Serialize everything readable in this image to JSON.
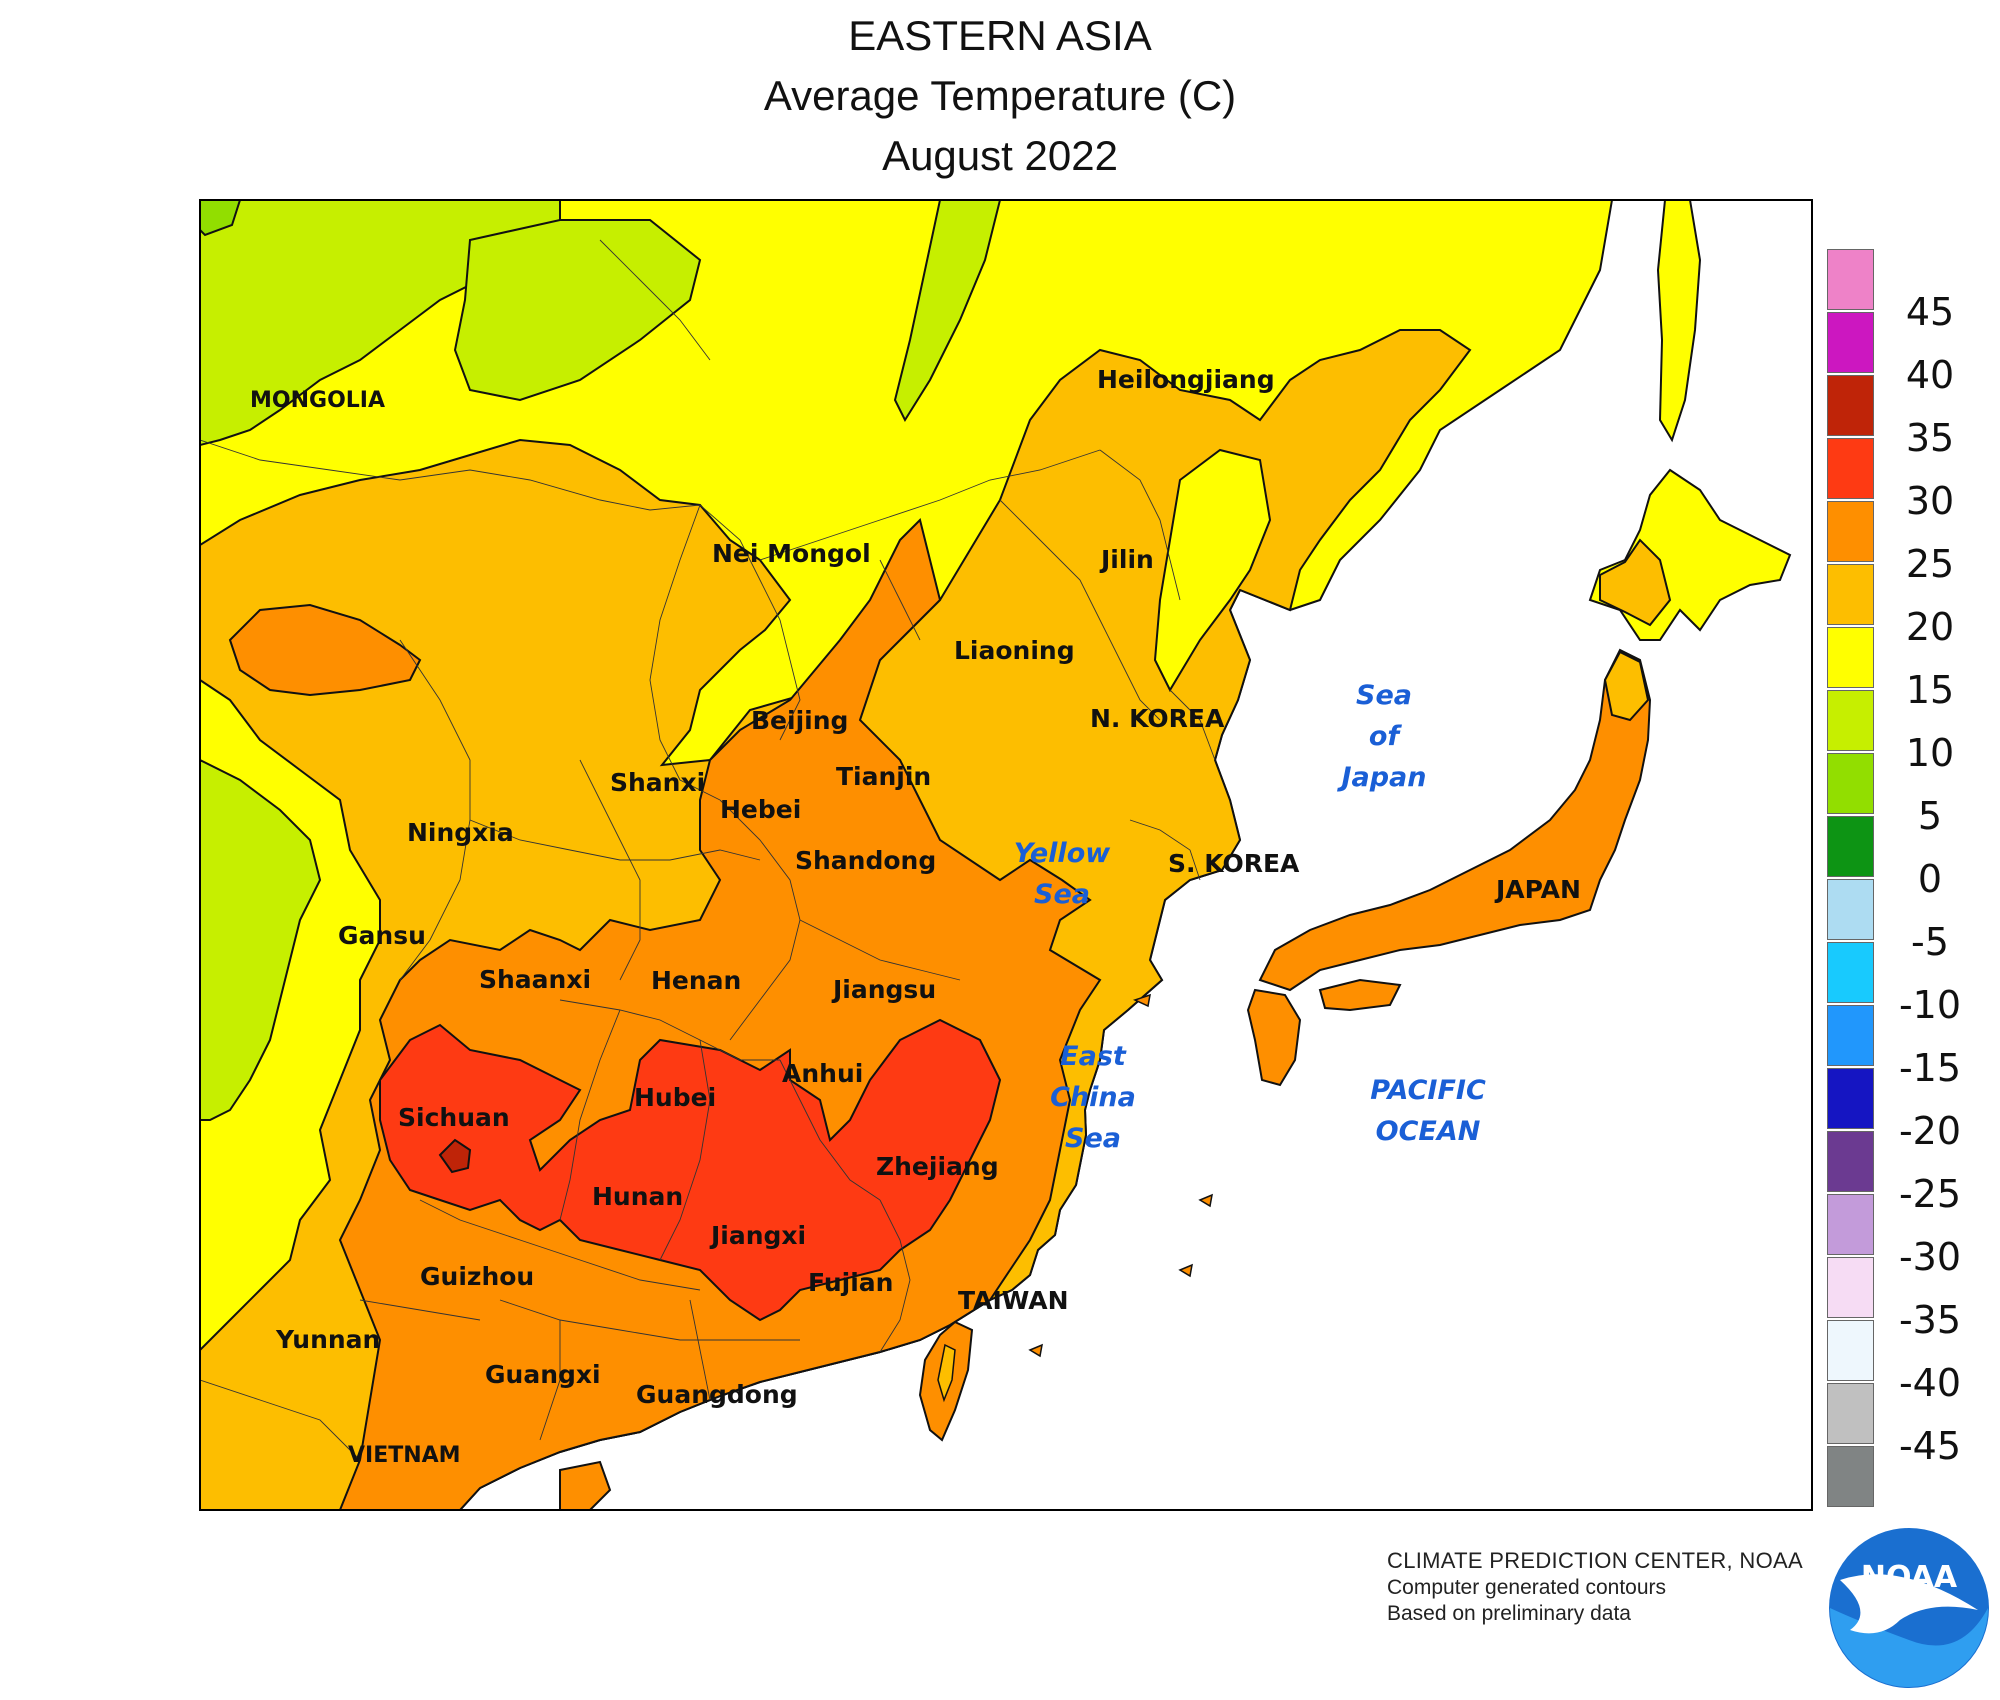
{
  "header": {
    "title": "EASTERN ASIA",
    "subtitle": "Average Temperature (C)",
    "period": "August 2022"
  },
  "map": {
    "region_labels": [
      "MONGOLIA",
      "Heilongjiang",
      "Nei Mongol",
      "Jilin",
      "Liaoning",
      "Beijing",
      "Tianjin",
      "N. KOREA",
      "Shanxi",
      "Hebei",
      "Ningxia",
      "Shandong",
      "S. KOREA",
      "JAPAN",
      "Gansu",
      "Shaanxi",
      "Henan",
      "Jiangsu",
      "Anhui",
      "Hubei",
      "Sichuan",
      "Zhejiang",
      "Hunan",
      "Jiangxi",
      "Guizhou",
      "Fujian",
      "TAIWAN",
      "Yunnan",
      "Guangxi",
      "Guangdong",
      "VIETNAM"
    ],
    "water_labels": [
      [
        "Sea",
        "of",
        "Japan"
      ],
      [
        "Yellow",
        "Sea"
      ],
      [
        "East",
        "China",
        "Sea"
      ],
      [
        "PACIFIC",
        "OCEAN"
      ]
    ]
  },
  "legend": {
    "items": [
      {
        "label": "",
        "color": "#ee82c8"
      },
      {
        "label": "45",
        "color": "#cc17c0"
      },
      {
        "label": "40",
        "color": "#bf2408"
      },
      {
        "label": "35",
        "color": "#fe3a13"
      },
      {
        "label": "30",
        "color": "#fe8f00"
      },
      {
        "label": "25",
        "color": "#fdbe00"
      },
      {
        "label": "20",
        "color": "#ffff00"
      },
      {
        "label": "15",
        "color": "#c6ef00"
      },
      {
        "label": "10",
        "color": "#92de00"
      },
      {
        "label": "5",
        "color": "#0d9414"
      },
      {
        "label": "0",
        "color": "#addcf2"
      },
      {
        "label": "-5",
        "color": "#18cafe"
      },
      {
        "label": "-10",
        "color": "#2197fc"
      },
      {
        "label": "-15",
        "color": "#1515c2"
      },
      {
        "label": "-20",
        "color": "#6b3a91"
      },
      {
        "label": "-25",
        "color": "#c39bda"
      },
      {
        "label": "-30",
        "color": "#f6dcf4"
      },
      {
        "label": "-35",
        "color": "#eef7fd"
      },
      {
        "label": "-40",
        "color": "#c0c0c0"
      },
      {
        "label": "-45",
        "color": "#808484"
      }
    ]
  },
  "credits": {
    "org": "CLIMATE PREDICTION CENTER, NOAA",
    "line2": "Computer generated contours",
    "line3": "Based on preliminary data",
    "logo_text": "NOAA"
  }
}
